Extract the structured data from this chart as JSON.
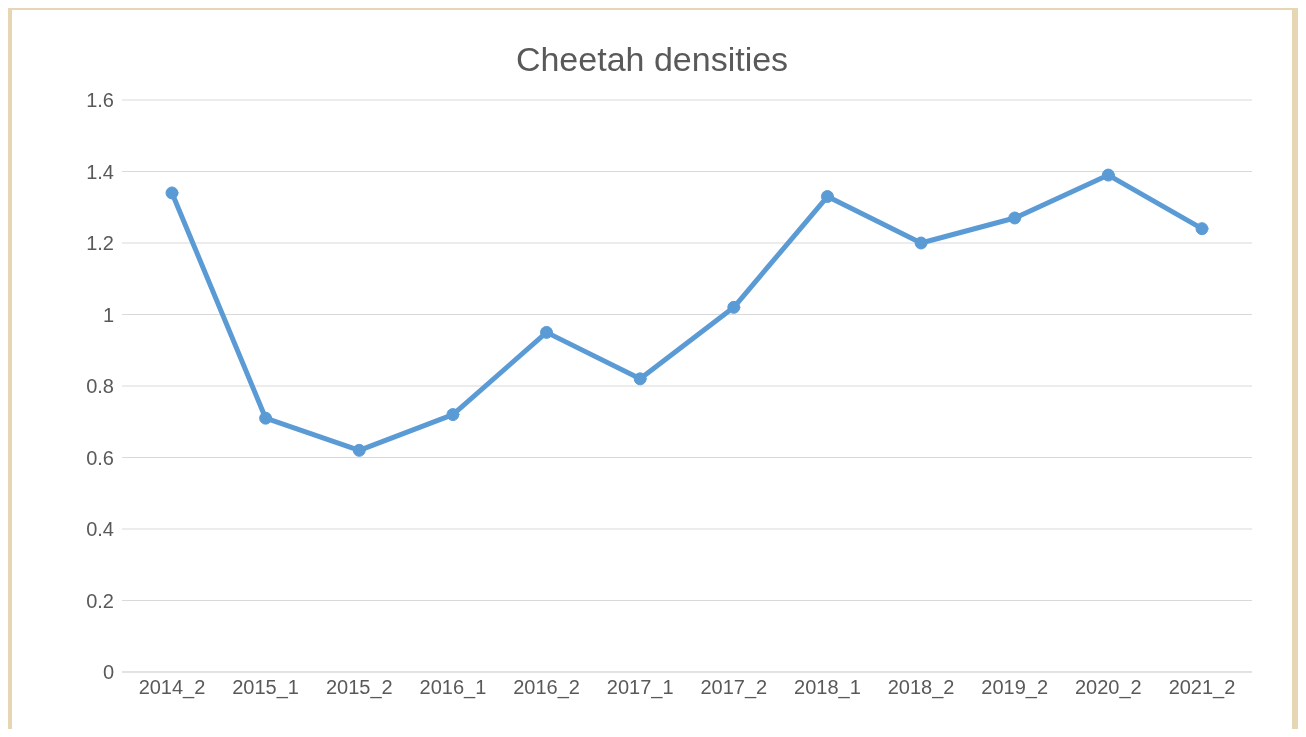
{
  "chart_data": {
    "type": "line",
    "title": "Cheetah densities",
    "categories": [
      "2014_2",
      "2015_1",
      "2015_2",
      "2016_1",
      "2016_2",
      "2017_1",
      "2017_2",
      "2018_1",
      "2018_2",
      "2019_2",
      "2020_2",
      "2021_2"
    ],
    "series": [
      {
        "color": "#5b9bd5",
        "values": [
          1.34,
          0.71,
          0.62,
          0.72,
          0.95,
          0.82,
          1.02,
          1.33,
          1.2,
          1.27,
          1.39,
          1.24
        ]
      }
    ],
    "ylim": [
      0,
      1.6
    ],
    "yticks": [
      0,
      0.2,
      0.4,
      0.6,
      0.8,
      1,
      1.2,
      1.4,
      1.6
    ],
    "grid": "y",
    "marker": "circle",
    "line_style": "solid"
  }
}
